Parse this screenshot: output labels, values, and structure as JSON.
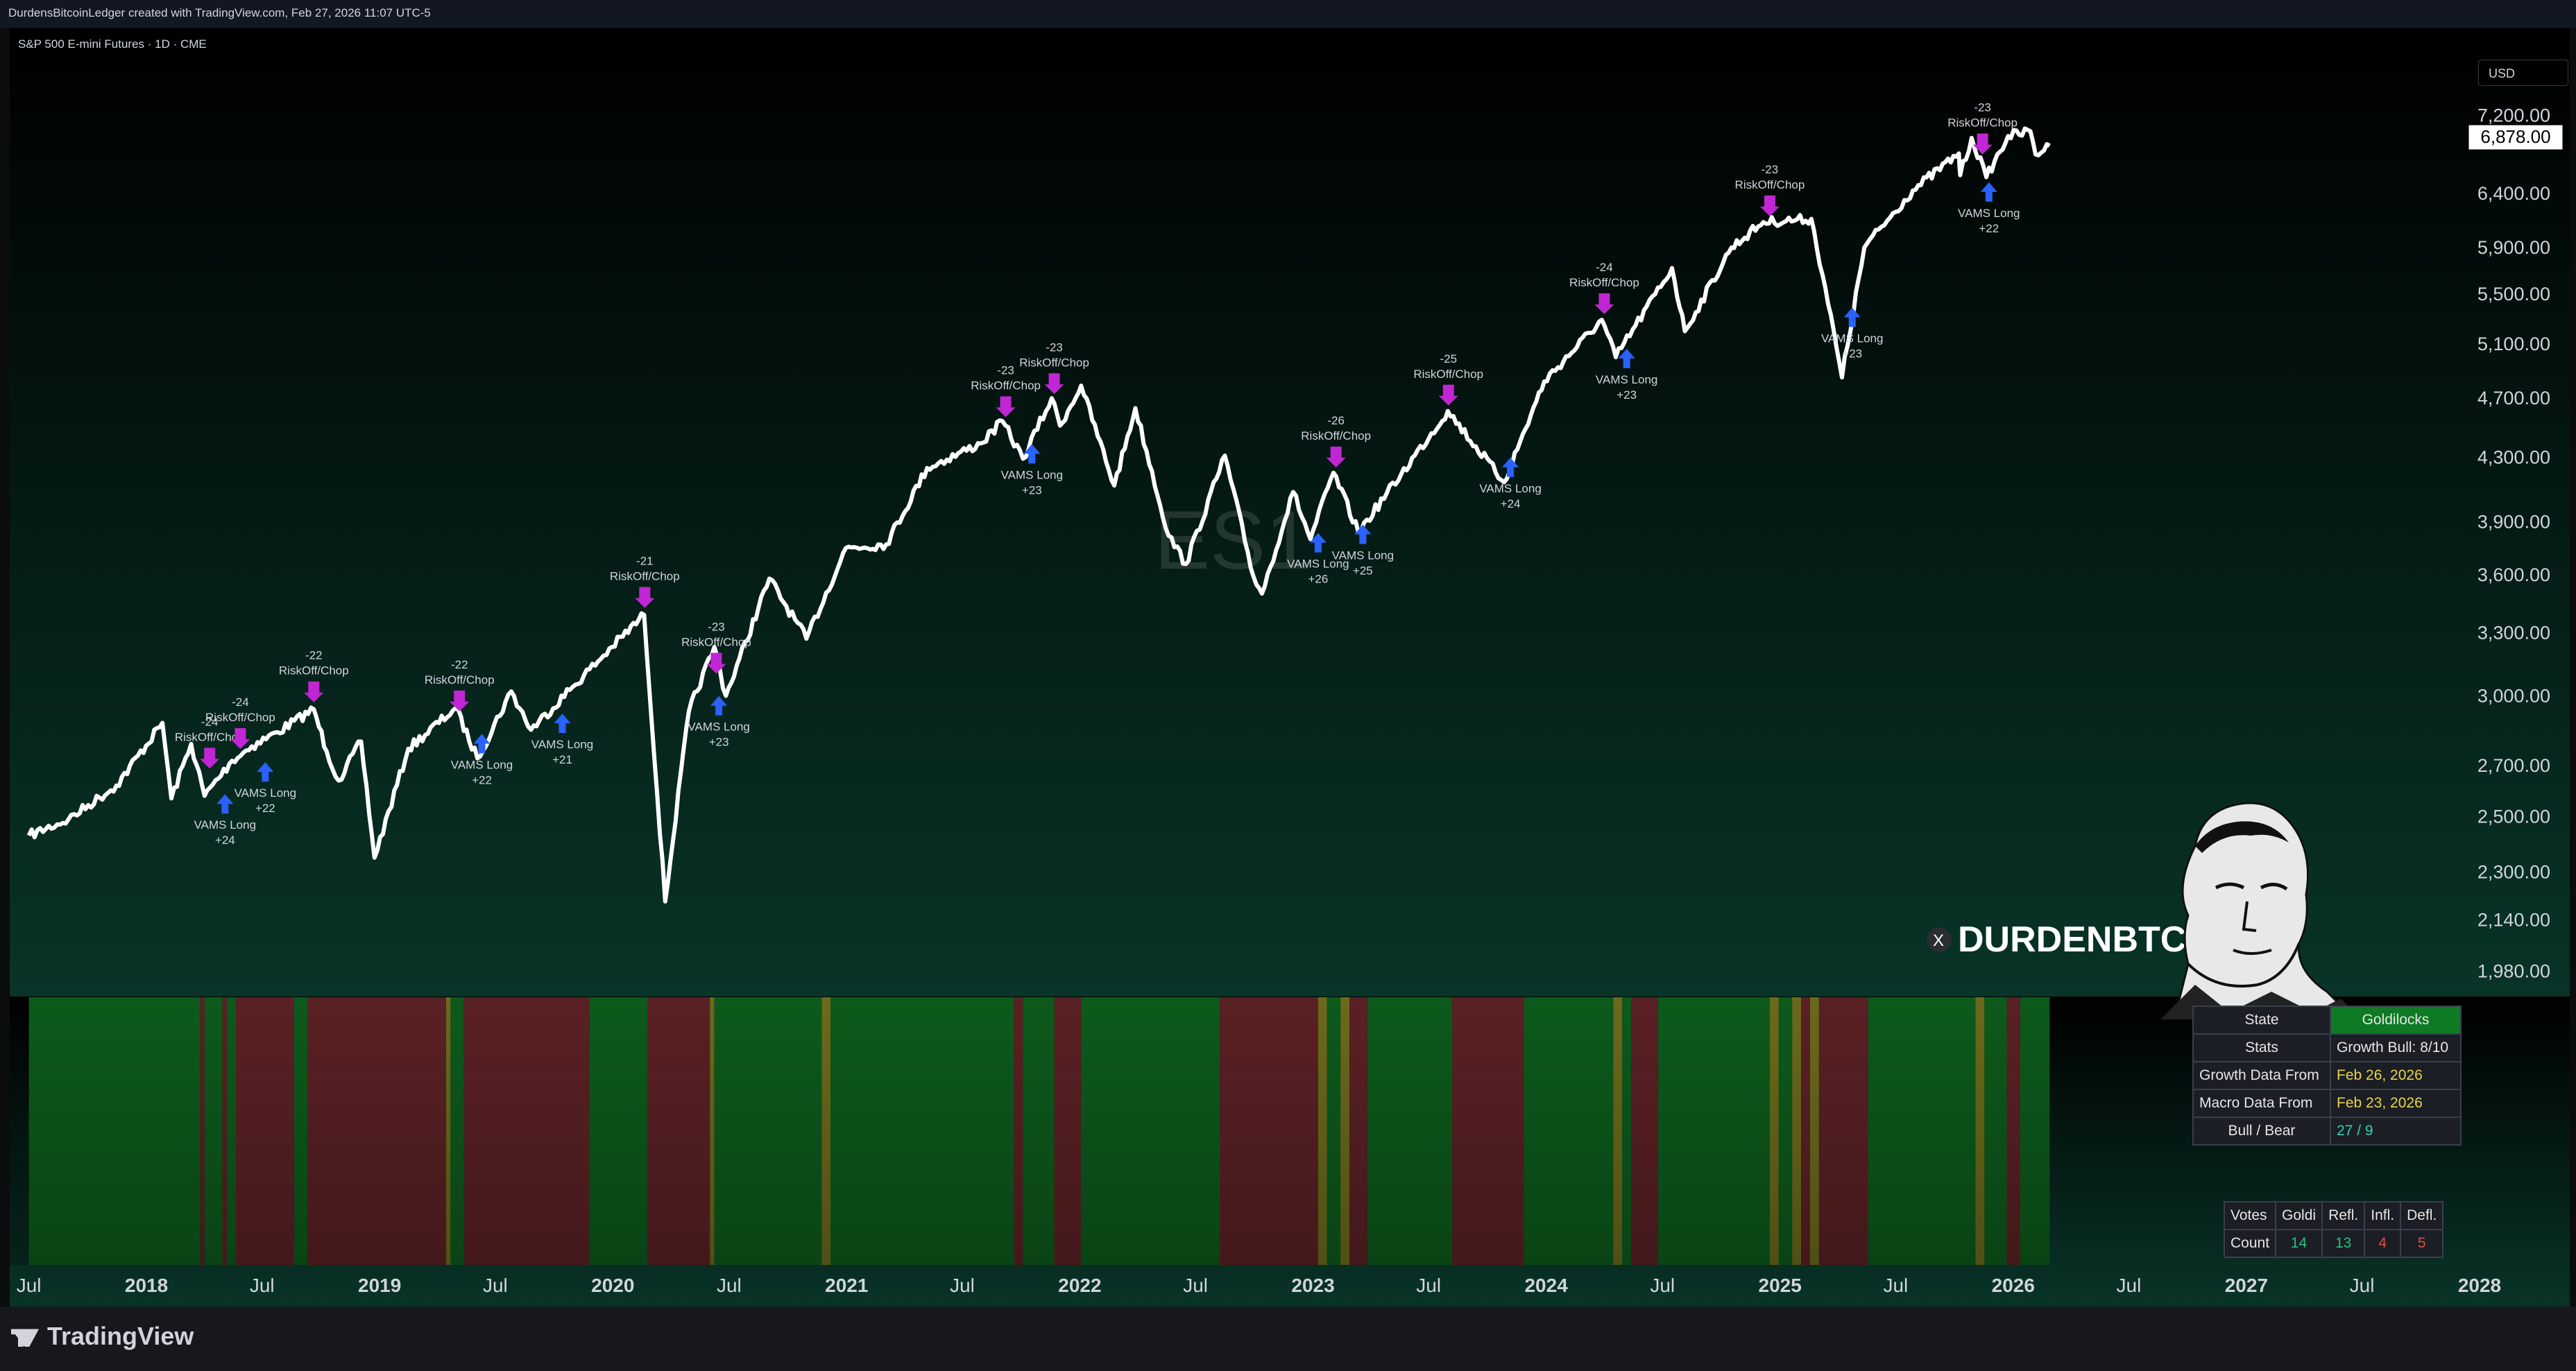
{
  "header": {
    "credit": "DurdensBitcoinLedger created with TradingView.com, Feb 27, 2026 11:07 UTC-5"
  },
  "chart": {
    "symbol_line": "S&P 500 E-mini Futures · 1D · CME",
    "currency": "USD",
    "ticker_watermark": "ES1",
    "brand": "DURDENBTC",
    "current_price": "6,878.00",
    "colors": {
      "bg_top": "#000000",
      "bg_bottom": "#093428",
      "line": "#ffffff",
      "riskoff": "#c026d3",
      "long": "#2962ff",
      "regime_green": "#0d5a1c",
      "regime_red": "#5a2124",
      "regime_olive": "#6b6a1b"
    }
  },
  "chart_data": {
    "type": "line",
    "title": "S&P 500 E-mini Futures · 1D · CME",
    "y_scale": "log",
    "price_ticks": [
      "7,200.00",
      "6,400.00",
      "5,900.00",
      "5,500.00",
      "5,100.00",
      "4,700.00",
      "4,300.00",
      "3,900.00",
      "3,600.00",
      "3,300.00",
      "3,000.00",
      "2,700.00",
      "2,500.00",
      "2,300.00",
      "2,140.00",
      "1,980.00"
    ],
    "time_ticks": [
      {
        "label": "Jul",
        "year": false
      },
      {
        "label": "2018",
        "year": true
      },
      {
        "label": "Jul",
        "year": false
      },
      {
        "label": "2019",
        "year": true
      },
      {
        "label": "Jul",
        "year": false
      },
      {
        "label": "2020",
        "year": true
      },
      {
        "label": "Jul",
        "year": false
      },
      {
        "label": "2021",
        "year": true
      },
      {
        "label": "Jul",
        "year": false
      },
      {
        "label": "2022",
        "year": true
      },
      {
        "label": "Jul",
        "year": false
      },
      {
        "label": "2023",
        "year": true
      },
      {
        "label": "Jul",
        "year": false
      },
      {
        "label": "2024",
        "year": true
      },
      {
        "label": "Jul",
        "year": false
      },
      {
        "label": "2025",
        "year": true
      },
      {
        "label": "Jul",
        "year": false
      },
      {
        "label": "2026",
        "year": true
      },
      {
        "label": "Jul",
        "year": false
      },
      {
        "label": "2027",
        "year": true
      },
      {
        "label": "Jul",
        "year": false
      },
      {
        "label": "2028",
        "year": true
      }
    ],
    "series": [
      {
        "points": [
          [
            "2017-07-01",
            2430
          ],
          [
            "2017-09-01",
            2490
          ],
          [
            "2017-11-15",
            2620
          ],
          [
            "2018-01-26",
            2880
          ],
          [
            "2018-02-09",
            2570
          ],
          [
            "2018-03-12",
            2790
          ],
          [
            "2018-04-02",
            2580
          ],
          [
            "2018-05-15",
            2720
          ],
          [
            "2018-06-15",
            2780
          ],
          [
            "2018-07-25",
            2840
          ],
          [
            "2018-09-20",
            2940
          ],
          [
            "2018-10-10",
            2760
          ],
          [
            "2018-10-29",
            2640
          ],
          [
            "2018-12-03",
            2800
          ],
          [
            "2018-12-24",
            2350
          ],
          [
            "2019-02-15",
            2770
          ],
          [
            "2019-04-30",
            2945
          ],
          [
            "2019-06-03",
            2730
          ],
          [
            "2019-07-26",
            3020
          ],
          [
            "2019-08-26",
            2850
          ],
          [
            "2019-10-30",
            3040
          ],
          [
            "2019-12-31",
            3230
          ],
          [
            "2020-02-19",
            3390
          ],
          [
            "2020-03-23",
            2200
          ],
          [
            "2020-04-29",
            2930
          ],
          [
            "2020-06-08",
            3230
          ],
          [
            "2020-06-26",
            3000
          ],
          [
            "2020-09-02",
            3580
          ],
          [
            "2020-10-30",
            3270
          ],
          [
            "2020-12-31",
            3750
          ],
          [
            "2021-03-04",
            3770
          ],
          [
            "2021-05-07",
            4230
          ],
          [
            "2021-07-30",
            4390
          ],
          [
            "2021-09-02",
            4540
          ],
          [
            "2021-10-04",
            4290
          ],
          [
            "2021-11-18",
            4700
          ],
          [
            "2021-12-01",
            4510
          ],
          [
            "2022-01-03",
            4790
          ],
          [
            "2022-02-24",
            4120
          ],
          [
            "2022-03-29",
            4630
          ],
          [
            "2022-05-20",
            3820
          ],
          [
            "2022-06-16",
            3660
          ],
          [
            "2022-08-16",
            4310
          ],
          [
            "2022-09-30",
            3590
          ],
          [
            "2022-10-13",
            3500
          ],
          [
            "2022-12-01",
            4080
          ],
          [
            "2022-12-28",
            3800
          ],
          [
            "2023-02-02",
            4200
          ],
          [
            "2023-03-13",
            3840
          ],
          [
            "2023-05-19",
            4190
          ],
          [
            "2023-07-31",
            4610
          ],
          [
            "2023-10-27",
            4140
          ],
          [
            "2023-12-29",
            4820
          ],
          [
            "2024-03-28",
            5290
          ],
          [
            "2024-04-19",
            5000
          ],
          [
            "2024-07-16",
            5720
          ],
          [
            "2024-08-05",
            5200
          ],
          [
            "2024-10-17",
            5900
          ],
          [
            "2024-12-06",
            6130
          ],
          [
            "2025-02-19",
            6160
          ],
          [
            "2025-03-13",
            5550
          ],
          [
            "2025-04-08",
            4850
          ],
          [
            "2025-05-13",
            5900
          ],
          [
            "2025-07-28",
            6430
          ],
          [
            "2025-10-08",
            6800
          ],
          [
            "2025-10-10",
            6580
          ],
          [
            "2025-10-28",
            6960
          ],
          [
            "2025-11-20",
            6560
          ],
          [
            "2025-12-24",
            6980
          ],
          [
            "2026-01-28",
            7030
          ],
          [
            "2026-02-05",
            6790
          ],
          [
            "2026-02-27",
            6878
          ]
        ]
      }
    ],
    "annotations": [
      {
        "type": "riskoff",
        "date": "2018-04-10",
        "value": 2660,
        "count": "-24",
        "label": "RiskOff/Chop"
      },
      {
        "type": "riskoff",
        "date": "2018-05-28",
        "value": 2740,
        "count": "-24",
        "label": "RiskOff/Chop"
      },
      {
        "type": "riskoff",
        "date": "2018-09-20",
        "value": 2940,
        "count": "-22",
        "label": "RiskOff/Chop"
      },
      {
        "type": "riskoff",
        "date": "2019-05-06",
        "value": 2900,
        "count": "-22",
        "label": "RiskOff/Chop"
      },
      {
        "type": "riskoff",
        "date": "2020-02-20",
        "value": 3390,
        "count": "-21",
        "label": "RiskOff/Chop"
      },
      {
        "type": "riskoff",
        "date": "2020-06-11",
        "value": 3070,
        "count": "-23",
        "label": "RiskOff/Chop"
      },
      {
        "type": "riskoff",
        "date": "2021-11-22",
        "value": 4680,
        "count": "-23",
        "label": "RiskOff/Chop"
      },
      {
        "type": "riskoff",
        "date": "2021-09-07",
        "value": 4520,
        "count": "-23",
        "label": "RiskOff/Chop"
      },
      {
        "type": "riskoff",
        "date": "2023-02-06",
        "value": 4190,
        "count": "-26",
        "label": "RiskOff/Chop"
      },
      {
        "type": "riskoff",
        "date": "2023-08-01",
        "value": 4600,
        "count": "-25",
        "label": "RiskOff/Chop"
      },
      {
        "type": "riskoff",
        "date": "2024-04-01",
        "value": 5280,
        "count": "-24",
        "label": "RiskOff/Chop"
      },
      {
        "type": "riskoff",
        "date": "2024-12-16",
        "value": 6120,
        "count": "-23",
        "label": "RiskOff/Chop"
      },
      {
        "type": "riskoff",
        "date": "2025-11-14",
        "value": 6720,
        "count": "-23",
        "label": "RiskOff/Chop"
      },
      {
        "type": "long",
        "date": "2018-05-04",
        "value": 2630,
        "count": "+24",
        "label": "VAMS Long"
      },
      {
        "type": "long",
        "date": "2018-07-06",
        "value": 2760,
        "count": "+22",
        "label": "VAMS Long"
      },
      {
        "type": "long",
        "date": "2019-06-10",
        "value": 2880,
        "count": "+22",
        "label": "VAMS Long"
      },
      {
        "type": "long",
        "date": "2019-10-14",
        "value": 2970,
        "count": "+21",
        "label": "VAMS Long"
      },
      {
        "type": "long",
        "date": "2020-06-15",
        "value": 3050,
        "count": "+23",
        "label": "VAMS Long"
      },
      {
        "type": "long",
        "date": "2021-10-18",
        "value": 4460,
        "count": "+23",
        "label": "VAMS Long"
      },
      {
        "type": "long",
        "date": "2023-01-09",
        "value": 3900,
        "count": "+26",
        "label": "VAMS Long"
      },
      {
        "type": "long",
        "date": "2023-03-20",
        "value": 3950,
        "count": "+25",
        "label": "VAMS Long"
      },
      {
        "type": "long",
        "date": "2023-11-06",
        "value": 4370,
        "count": "+24",
        "label": "VAMS Long"
      },
      {
        "type": "long",
        "date": "2024-05-06",
        "value": 5150,
        "count": "+23",
        "label": "VAMS Long"
      },
      {
        "type": "long",
        "date": "2025-04-24",
        "value": 5480,
        "count": "+23",
        "label": "VAMS Long"
      },
      {
        "type": "long",
        "date": "2025-11-24",
        "value": 6620,
        "count": "+22",
        "label": "VAMS Long"
      }
    ],
    "regime_bands": [
      {
        "start": "2017-07-01",
        "end": "2018-03-26",
        "state": "green"
      },
      {
        "start": "2018-03-26",
        "end": "2018-04-02",
        "state": "red"
      },
      {
        "start": "2018-04-02",
        "end": "2018-04-30",
        "state": "green"
      },
      {
        "start": "2018-04-30",
        "end": "2018-05-07",
        "state": "red"
      },
      {
        "start": "2018-05-07",
        "end": "2018-05-21",
        "state": "green"
      },
      {
        "start": "2018-05-21",
        "end": "2018-08-20",
        "state": "red"
      },
      {
        "start": "2018-08-20",
        "end": "2018-09-10",
        "state": "green"
      },
      {
        "start": "2018-09-10",
        "end": "2019-04-15",
        "state": "red"
      },
      {
        "start": "2019-04-15",
        "end": "2019-04-22",
        "state": "olive"
      },
      {
        "start": "2019-04-22",
        "end": "2019-05-13",
        "state": "green"
      },
      {
        "start": "2019-05-13",
        "end": "2019-11-25",
        "state": "red"
      },
      {
        "start": "2019-11-25",
        "end": "2020-02-24",
        "state": "green"
      },
      {
        "start": "2020-02-24",
        "end": "2020-06-01",
        "state": "red"
      },
      {
        "start": "2020-06-01",
        "end": "2020-06-08",
        "state": "olive"
      },
      {
        "start": "2020-06-08",
        "end": "2020-11-23",
        "state": "green"
      },
      {
        "start": "2020-11-23",
        "end": "2020-12-07",
        "state": "olive"
      },
      {
        "start": "2020-12-07",
        "end": "2021-09-20",
        "state": "green"
      },
      {
        "start": "2021-09-20",
        "end": "2021-10-04",
        "state": "red"
      },
      {
        "start": "2021-10-04",
        "end": "2021-11-22",
        "state": "green"
      },
      {
        "start": "2021-11-22",
        "end": "2022-01-03",
        "state": "red"
      },
      {
        "start": "2022-01-03",
        "end": "2022-08-08",
        "state": "green"
      },
      {
        "start": "2022-08-08",
        "end": "2023-01-09",
        "state": "red"
      },
      {
        "start": "2023-01-09",
        "end": "2023-01-23",
        "state": "olive"
      },
      {
        "start": "2023-01-23",
        "end": "2023-02-13",
        "state": "green"
      },
      {
        "start": "2023-02-13",
        "end": "2023-02-27",
        "state": "olive"
      },
      {
        "start": "2023-02-27",
        "end": "2023-03-06",
        "state": "red"
      },
      {
        "start": "2023-03-06",
        "end": "2023-03-27",
        "state": "red"
      },
      {
        "start": "2023-03-27",
        "end": "2023-08-07",
        "state": "green"
      },
      {
        "start": "2023-08-07",
        "end": "2023-11-27",
        "state": "red"
      },
      {
        "start": "2023-11-27",
        "end": "2024-04-15",
        "state": "green"
      },
      {
        "start": "2024-04-15",
        "end": "2024-04-29",
        "state": "olive"
      },
      {
        "start": "2024-04-29",
        "end": "2024-05-13",
        "state": "green"
      },
      {
        "start": "2024-05-13",
        "end": "2024-06-24",
        "state": "red"
      },
      {
        "start": "2024-06-24",
        "end": "2024-12-16",
        "state": "green"
      },
      {
        "start": "2024-12-16",
        "end": "2024-12-30",
        "state": "olive"
      },
      {
        "start": "2024-12-30",
        "end": "2025-01-20",
        "state": "green"
      },
      {
        "start": "2025-01-20",
        "end": "2025-02-03",
        "state": "olive"
      },
      {
        "start": "2025-02-03",
        "end": "2025-02-17",
        "state": "red"
      },
      {
        "start": "2025-02-17",
        "end": "2025-03-03",
        "state": "olive"
      },
      {
        "start": "2025-03-03",
        "end": "2025-05-19",
        "state": "red"
      },
      {
        "start": "2025-05-19",
        "end": "2025-11-03",
        "state": "green"
      },
      {
        "start": "2025-11-03",
        "end": "2025-11-17",
        "state": "olive"
      },
      {
        "start": "2025-11-17",
        "end": "2025-12-22",
        "state": "green"
      },
      {
        "start": "2025-12-22",
        "end": "2026-01-12",
        "state": "red"
      },
      {
        "start": "2026-01-12",
        "end": "2026-02-27",
        "state": "green"
      }
    ]
  },
  "state_table": {
    "state_label": "State",
    "state_value": "Goldilocks",
    "stats_label": "Stats",
    "stats_value": "Growth Bull: 8/10",
    "growth_label": "Growth Data From",
    "growth_value": "Feb 26, 2026",
    "macro_label": "Macro Data From",
    "macro_value": "Feb 23, 2026",
    "bullbear_label": "Bull / Bear",
    "bullbear_value": "27 / 9"
  },
  "votes_table": {
    "headers": [
      "Votes",
      "Goldi",
      "Refl.",
      "Infl.",
      "Defl."
    ],
    "count_label": "Count",
    "counts": [
      "14",
      "13",
      "4",
      "5"
    ]
  },
  "footer": {
    "brand": "TradingView"
  }
}
